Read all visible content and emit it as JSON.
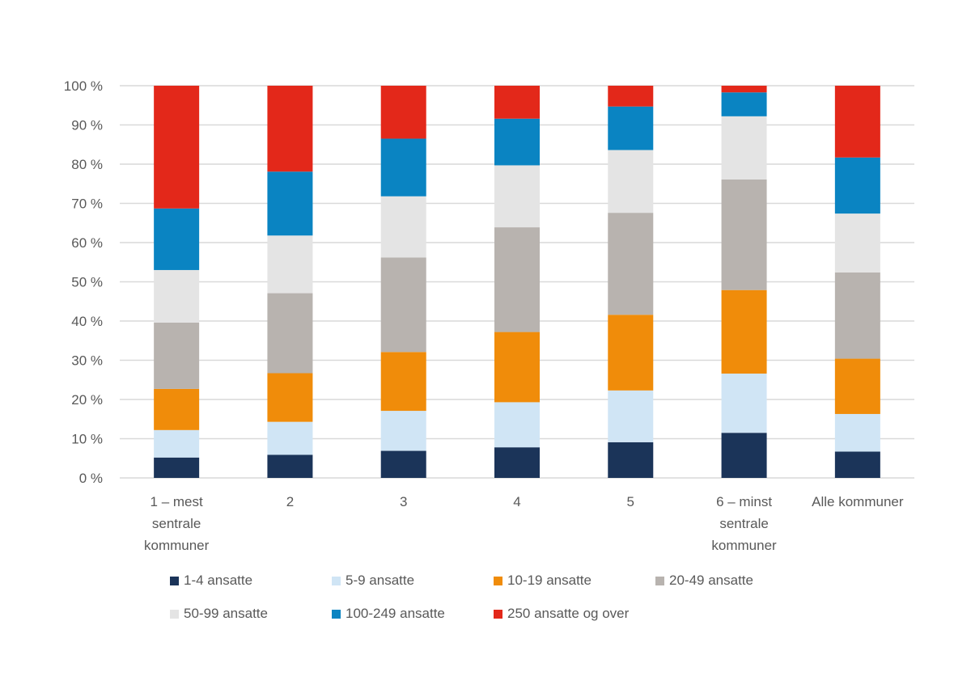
{
  "chart_data": {
    "type": "bar",
    "stacked": true,
    "percent_stacked": true,
    "title": "",
    "xlabel": "",
    "ylabel": "",
    "ylim": [
      0,
      100
    ],
    "yticks": [
      "0 %",
      "10 %",
      "20 %",
      "30 %",
      "40 %",
      "50 %",
      "60 %",
      "70 %",
      "80 %",
      "90 %",
      "100 %"
    ],
    "grid": true,
    "legend_position": "bottom",
    "categories": [
      [
        "1 – mest",
        "sentrale",
        "kommuner"
      ],
      [
        "2"
      ],
      [
        "3"
      ],
      [
        "4"
      ],
      [
        "5"
      ],
      [
        "6 – minst",
        "sentrale",
        "kommuner"
      ],
      [
        "Alle kommuner"
      ]
    ],
    "series": [
      {
        "name": "1-4 ansatte",
        "color": "#1b3459",
        "values": [
          5.2,
          5.9,
          6.9,
          7.8,
          9.1,
          11.5,
          6.7
        ]
      },
      {
        "name": "5-9 ansatte",
        "color": "#d0e5f5",
        "values": [
          7.0,
          8.4,
          10.2,
          11.5,
          13.2,
          15.1,
          9.6
        ]
      },
      {
        "name": "10-19 ansatte",
        "color": "#f08c0a",
        "values": [
          10.5,
          12.4,
          15.0,
          17.9,
          19.3,
          21.3,
          14.1
        ]
      },
      {
        "name": "20-49 ansatte",
        "color": "#b8b3af",
        "values": [
          16.9,
          20.4,
          24.1,
          26.7,
          26.0,
          28.2,
          22.0
        ]
      },
      {
        "name": "50-99 ansatte",
        "color": "#e4e4e4",
        "values": [
          13.4,
          14.7,
          15.6,
          15.8,
          16.0,
          16.1,
          15.0
        ]
      },
      {
        "name": "100-249 ansatte",
        "color": "#0a84c2",
        "values": [
          15.7,
          16.3,
          14.7,
          11.9,
          11.1,
          6.1,
          14.3
        ]
      },
      {
        "name": "250 ansatte og over",
        "color": "#e3281a",
        "values": [
          31.3,
          21.9,
          13.5,
          8.4,
          5.3,
          1.7,
          18.3
        ]
      }
    ]
  }
}
